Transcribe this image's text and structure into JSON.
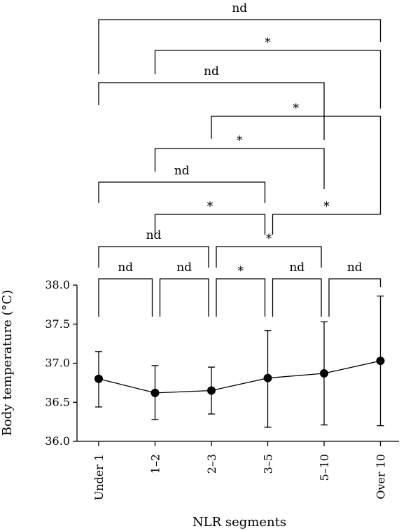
{
  "chart_data": {
    "type": "line",
    "xlabel": "NLR segments",
    "ylabel": "Body temperature (°C)",
    "categories": [
      "Under 1",
      "1–2",
      "2–3",
      "3–5",
      "5–10",
      "Over 10"
    ],
    "ylim": [
      36.0,
      38.0
    ],
    "yticks": [
      "36.0",
      "36.5",
      "37.0",
      "37.5",
      "38.0"
    ],
    "series": [
      {
        "values": [
          36.8,
          36.62,
          36.65,
          36.81,
          36.87,
          37.03
        ],
        "error_low": [
          36.44,
          36.28,
          36.35,
          36.18,
          36.21,
          36.2
        ],
        "error_high": [
          37.15,
          36.97,
          36.95,
          37.42,
          37.53,
          37.86
        ]
      }
    ],
    "comparisons": [
      {
        "from": 0,
        "to": 1,
        "label": "nd"
      },
      {
        "from": 1,
        "to": 2,
        "label": "nd"
      },
      {
        "from": 2,
        "to": 3,
        "label": "*"
      },
      {
        "from": 3,
        "to": 4,
        "label": "nd"
      },
      {
        "from": 4,
        "to": 5,
        "label": "nd"
      },
      {
        "from": 0,
        "to": 2,
        "label": "nd"
      },
      {
        "from": 2,
        "to": 4,
        "label": "*"
      },
      {
        "from": 1,
        "to": 3,
        "label": "*"
      },
      {
        "from": 3,
        "to": 5,
        "label": "*"
      },
      {
        "from": 0,
        "to": 3,
        "label": "nd"
      },
      {
        "from": 1,
        "to": 4,
        "label": "*"
      },
      {
        "from": 2,
        "to": 5,
        "label": "*"
      },
      {
        "from": 0,
        "to": 4,
        "label": "nd"
      },
      {
        "from": 1,
        "to": 5,
        "label": "*"
      },
      {
        "from": 0,
        "to": 5,
        "label": "nd"
      }
    ],
    "grid": false,
    "legend": "none"
  }
}
